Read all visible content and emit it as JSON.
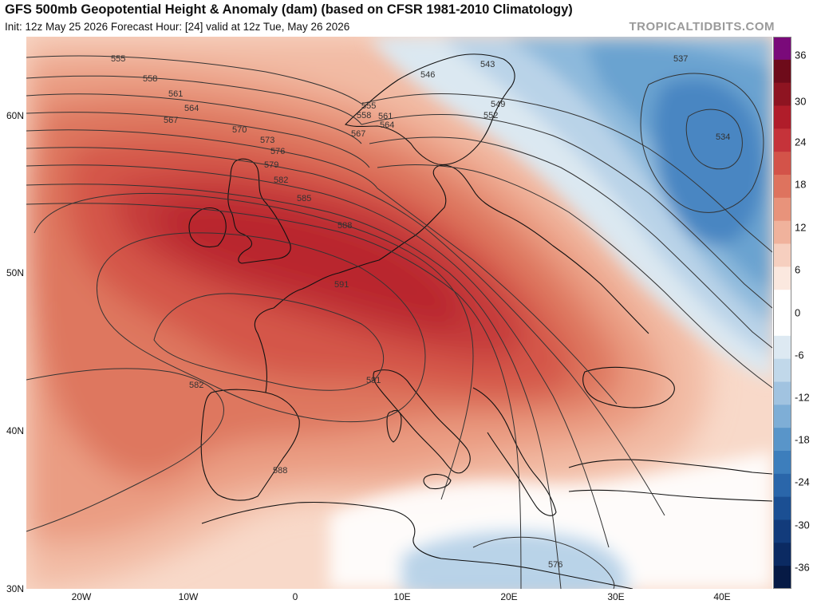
{
  "header": {
    "title": "GFS 500mb Geopotential Height & Anomaly (dam) (based on CFSR 1981-2010 Climatology)",
    "subtitle": "Init: 12z May 25 2026   Forecast Hour: [24]   valid at 12z Tue, May 26 2026",
    "brand": "TROPICALTIDBITS.COM"
  },
  "map": {
    "region": "Europe and North Atlantic",
    "lat_labels": [
      "60N",
      "50N",
      "40N",
      "30N"
    ],
    "lon_labels": [
      "20W",
      "10W",
      "0",
      "10E",
      "20E",
      "30E",
      "40E"
    ],
    "contour_labels": [
      "555",
      "558",
      "561",
      "564",
      "567",
      "570",
      "573",
      "576",
      "579",
      "582",
      "585",
      "588",
      "591",
      "591",
      "582",
      "588",
      "543",
      "546",
      "549",
      "552",
      "555",
      "558",
      "561",
      "564",
      "567",
      "537",
      "534",
      "576"
    ]
  },
  "colorbar": {
    "ticks": [
      "36",
      "30",
      "24",
      "18",
      "12",
      "6",
      "0",
      "-6",
      "-12",
      "-18",
      "-24",
      "-30",
      "-36"
    ],
    "colors": [
      "#7a0a7a",
      "#6e0b1a",
      "#8e1421",
      "#b01d2a",
      "#c5333a",
      "#d35349",
      "#de735e",
      "#e8937b",
      "#f0b29c",
      "#f6cfbf",
      "#fbe8df",
      "#ffffff",
      "#ffffff",
      "#dde9f2",
      "#c1d8ea",
      "#a1c3e0",
      "#7eaed6",
      "#5995c9",
      "#3d7ebc",
      "#2a66aa",
      "#1b4f93",
      "#123b7b",
      "#0b2a62",
      "#061a45"
    ]
  }
}
